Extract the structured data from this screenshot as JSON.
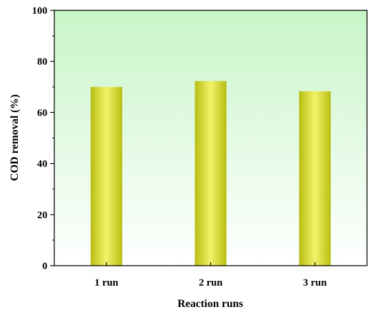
{
  "chart_data": {
    "type": "bar",
    "title": "",
    "xlabel": "Reaction runs",
    "ylabel": "COD removal  (%)",
    "categories": [
      "1 run",
      "2 run",
      "3 run"
    ],
    "values": [
      70.0,
      72.3,
      68.3
    ],
    "ylim": [
      0,
      100
    ],
    "yticks": [
      0,
      20,
      40,
      60,
      80,
      100
    ],
    "grid": false,
    "legend": "none",
    "colors": {
      "bar_center": "#f3f36a",
      "bar_edge": "#b8bd12",
      "bg_top": "#c8f5c8",
      "bg_bottom": "#ffffff",
      "axis": "#000000"
    }
  }
}
